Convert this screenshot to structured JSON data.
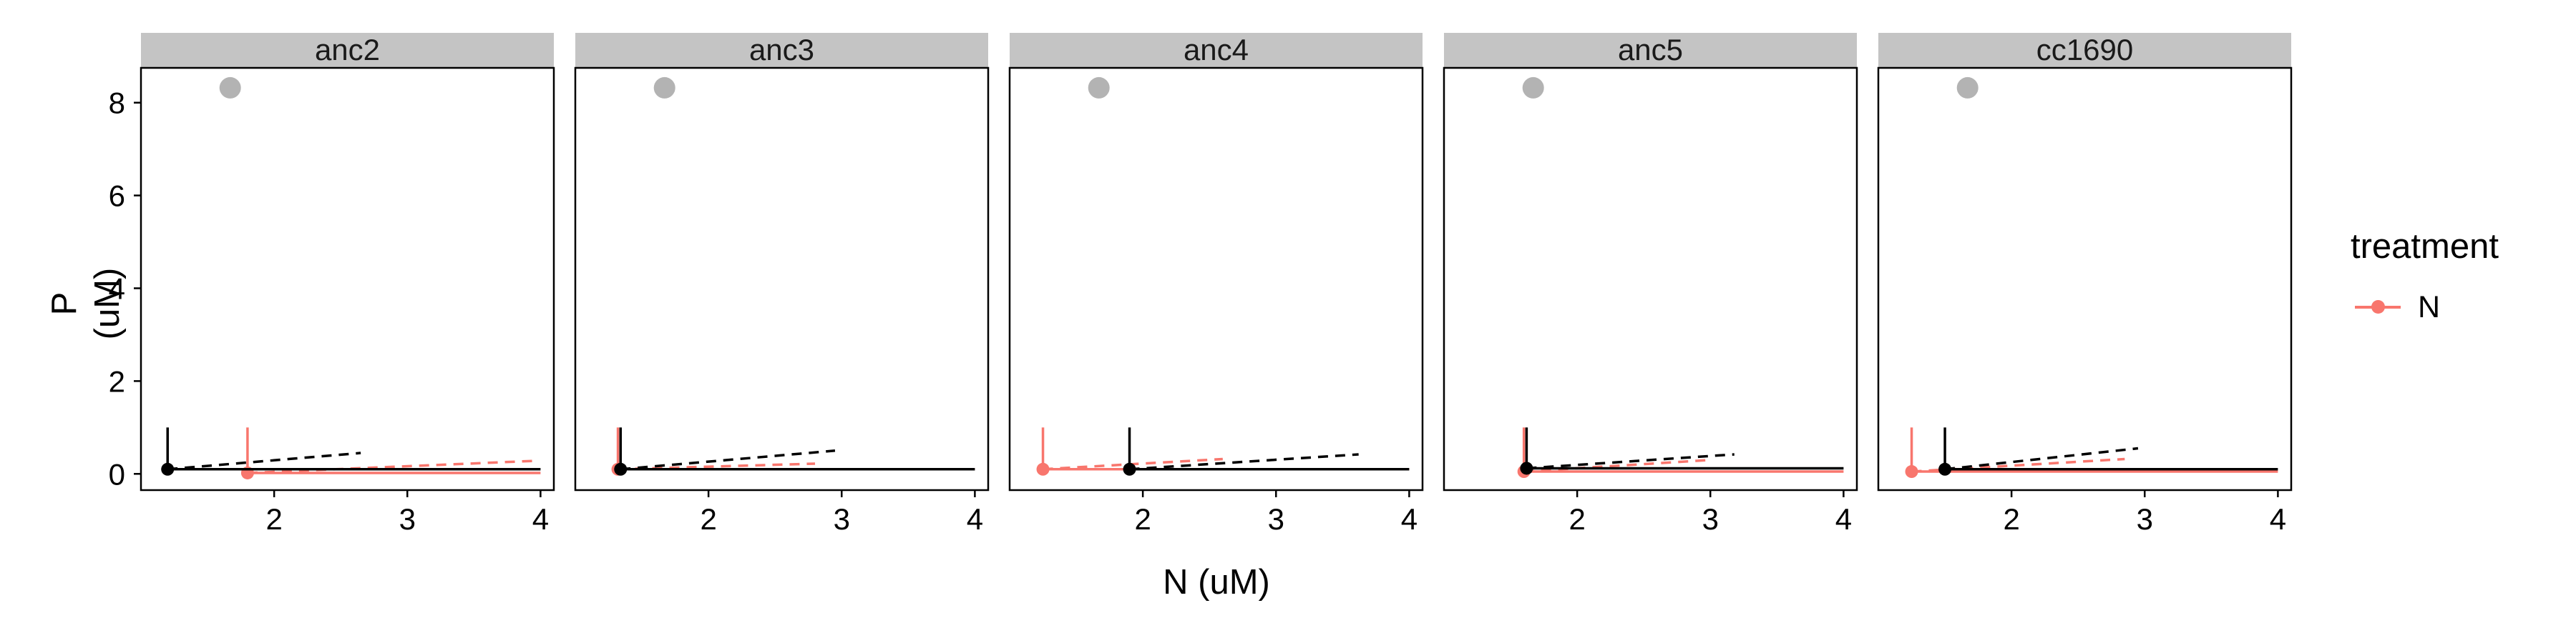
{
  "chart_data": {
    "type": "scatter",
    "xlabel": "N (uM)",
    "ylabel": "P (uM)",
    "xlim": [
      1.0,
      4.1
    ],
    "ylim": [
      -0.35,
      8.75
    ],
    "x_ticks": [
      "2",
      "3",
      "4"
    ],
    "y_ticks": [
      "0",
      "2",
      "4",
      "6",
      "8"
    ],
    "grid": false,
    "legend": {
      "title": "treatment",
      "entries": [
        "N"
      ],
      "position": "right"
    },
    "colors": {
      "treatment_N": "#F8766D",
      "reference": "#000000",
      "grey_point": "#B3B3B3",
      "strip": "#C4C4C4"
    },
    "panels": [
      {
        "strip": "anc2",
        "grey_point": {
          "x": 1.67,
          "y": 8.32
        },
        "black": {
          "point": {
            "x": 1.2,
            "y": 0.1
          },
          "vline_top": 1.0,
          "hline": {
            "x": [
              1.2,
              4.0
            ],
            "y": 0.1
          },
          "dashed": {
            "x": [
              1.2,
              2.65
            ],
            "y": [
              0.1,
              0.45
            ]
          }
        },
        "red": {
          "point": {
            "x": 1.8,
            "y": 0.02
          },
          "vline_top": 1.0,
          "hline": {
            "x": [
              1.8,
              4.0
            ],
            "y": 0.02
          },
          "dashed": {
            "x": [
              1.8,
              3.95
            ],
            "y": [
              0.02,
              0.28
            ]
          }
        }
      },
      {
        "strip": "anc3",
        "grey_point": {
          "x": 1.67,
          "y": 8.32
        },
        "black": {
          "point": {
            "x": 1.34,
            "y": 0.1
          },
          "vline_top": 1.0,
          "hline": {
            "x": [
              1.34,
              4.0
            ],
            "y": 0.1
          },
          "dashed": {
            "x": [
              1.34,
              2.95
            ],
            "y": [
              0.1,
              0.5
            ]
          }
        },
        "red": {
          "point": {
            "x": 1.32,
            "y": 0.1
          },
          "vline_top": 1.0,
          "hline": {
            "x": [
              1.32,
              4.0
            ],
            "y": 0.1
          },
          "dashed": {
            "x": [
              1.32,
              2.8
            ],
            "y": [
              0.1,
              0.22
            ]
          }
        }
      },
      {
        "strip": "anc4",
        "grey_point": {
          "x": 1.67,
          "y": 8.32
        },
        "black": {
          "point": {
            "x": 1.9,
            "y": 0.1
          },
          "vline_top": 1.0,
          "hline": {
            "x": [
              1.9,
              4.0
            ],
            "y": 0.1
          },
          "dashed": {
            "x": [
              1.9,
              3.62
            ],
            "y": [
              0.1,
              0.42
            ]
          }
        },
        "red": {
          "point": {
            "x": 1.25,
            "y": 0.1
          },
          "vline_top": 1.0,
          "hline": {
            "x": [
              1.25,
              4.0
            ],
            "y": 0.1
          },
          "dashed": {
            "x": [
              1.25,
              2.6
            ],
            "y": [
              0.1,
              0.32
            ]
          }
        }
      },
      {
        "strip": "anc5",
        "grey_point": {
          "x": 1.67,
          "y": 8.32
        },
        "black": {
          "point": {
            "x": 1.62,
            "y": 0.12
          },
          "vline_top": 1.0,
          "hline": {
            "x": [
              1.62,
              4.0
            ],
            "y": 0.12
          },
          "dashed": {
            "x": [
              1.62,
              3.18
            ],
            "y": [
              0.12,
              0.42
            ]
          }
        },
        "red": {
          "point": {
            "x": 1.6,
            "y": 0.05
          },
          "vline_top": 1.0,
          "hline": {
            "x": [
              1.6,
              4.0
            ],
            "y": 0.05
          },
          "dashed": {
            "x": [
              1.6,
              3.0
            ],
            "y": [
              0.05,
              0.3
            ]
          }
        }
      },
      {
        "strip": "cc1690",
        "grey_point": {
          "x": 1.67,
          "y": 8.32
        },
        "black": {
          "point": {
            "x": 1.5,
            "y": 0.1
          },
          "vline_top": 1.0,
          "hline": {
            "x": [
              1.5,
              4.0
            ],
            "y": 0.1
          },
          "dashed": {
            "x": [
              1.5,
              2.95
            ],
            "y": [
              0.1,
              0.55
            ]
          }
        },
        "red": {
          "point": {
            "x": 1.25,
            "y": 0.05
          },
          "vline_top": 1.0,
          "hline": {
            "x": [
              1.25,
              4.0
            ],
            "y": 0.05
          },
          "dashed": {
            "x": [
              1.25,
              2.85
            ],
            "y": [
              0.05,
              0.32
            ]
          }
        }
      }
    ]
  }
}
